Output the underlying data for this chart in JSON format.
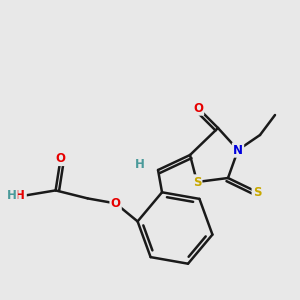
{
  "bg_color": "#e8e8e8",
  "bond_color": "#1a1a1a",
  "colors": {
    "O": "#e60000",
    "N": "#0000dd",
    "S": "#c8a800",
    "H": "#4a9a9a",
    "C": "#1a1a1a"
  },
  "lw": 1.8,
  "fs": 8.5
}
